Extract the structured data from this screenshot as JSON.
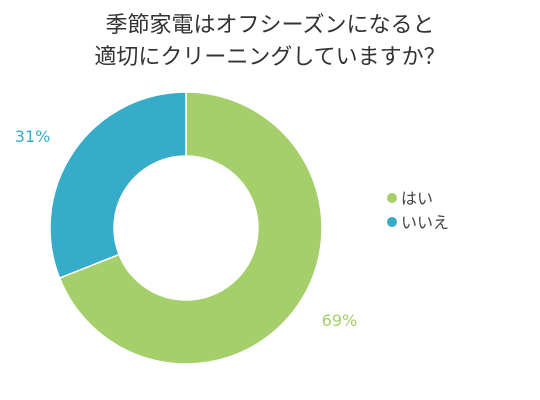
{
  "chart_data": {
    "type": "pie",
    "title_lines": [
      "季節家電はオフシーズンになると",
      "適切にクリーニングしていますか？"
    ],
    "categories": [
      "はい",
      "いいえ"
    ],
    "values": [
      69,
      31
    ],
    "labels": [
      "69%",
      "31%"
    ],
    "colors": [
      "#a4cf6a",
      "#36acc9"
    ],
    "legend_position": "right",
    "donut": true
  }
}
